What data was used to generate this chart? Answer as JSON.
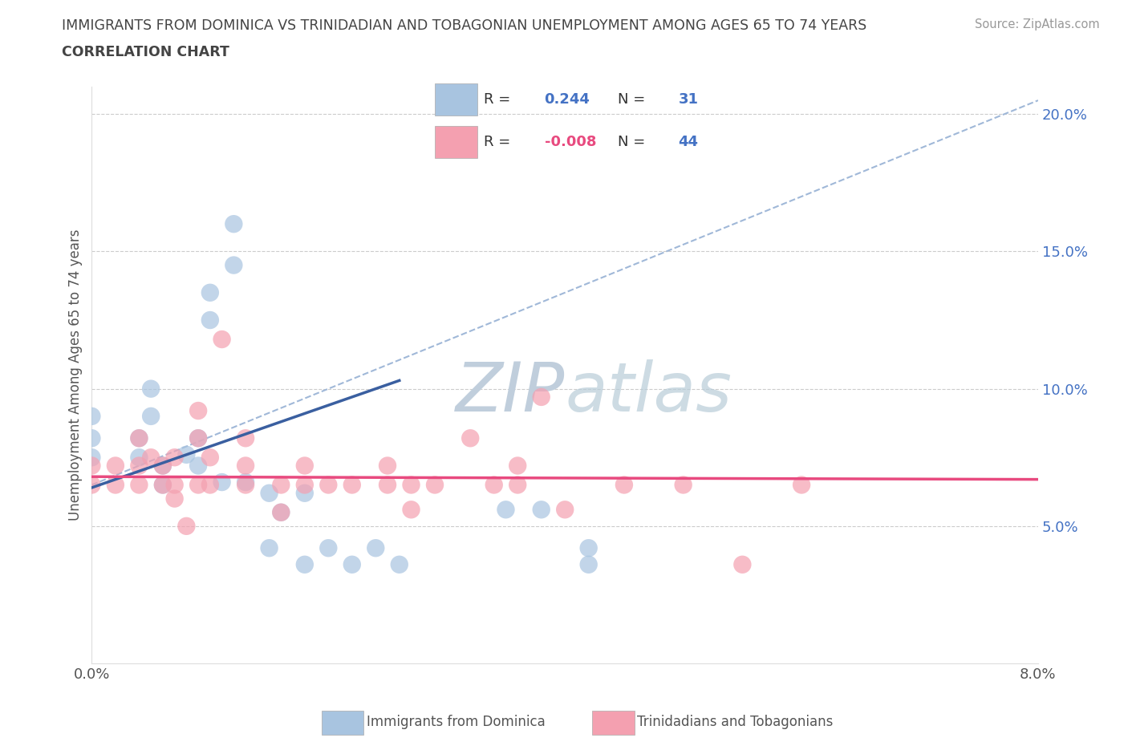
{
  "title": "IMMIGRANTS FROM DOMINICA VS TRINIDADIAN AND TOBAGONIAN UNEMPLOYMENT AMONG AGES 65 TO 74 YEARS",
  "subtitle": "CORRELATION CHART",
  "source": "Source: ZipAtlas.com",
  "ylabel": "Unemployment Among Ages 65 to 74 years",
  "xlim": [
    0.0,
    0.08
  ],
  "ylim": [
    0.0,
    0.21
  ],
  "R_blue": 0.244,
  "N_blue": 31,
  "R_pink": -0.008,
  "N_pink": 44,
  "blue_color": "#a8c4e0",
  "pink_color": "#f4a0b0",
  "blue_line_color": "#3a5fa0",
  "pink_line_color": "#e84a7f",
  "dash_color": "#a0b8d8",
  "watermark_color": "#ccd8e8",
  "legend_label_blue": "Immigrants from Dominica",
  "legend_label_pink": "Trinidadians and Tobagonians",
  "ytick_color": "#4472c4",
  "blue_scatter": [
    [
      0.0,
      0.075
    ],
    [
      0.0,
      0.082
    ],
    [
      0.0,
      0.09
    ],
    [
      0.004,
      0.075
    ],
    [
      0.004,
      0.082
    ],
    [
      0.005,
      0.09
    ],
    [
      0.005,
      0.1
    ],
    [
      0.006,
      0.065
    ],
    [
      0.006,
      0.072
    ],
    [
      0.008,
      0.076
    ],
    [
      0.009,
      0.072
    ],
    [
      0.009,
      0.082
    ],
    [
      0.01,
      0.125
    ],
    [
      0.01,
      0.135
    ],
    [
      0.011,
      0.066
    ],
    [
      0.012,
      0.145
    ],
    [
      0.012,
      0.16
    ],
    [
      0.013,
      0.066
    ],
    [
      0.015,
      0.042
    ],
    [
      0.015,
      0.062
    ],
    [
      0.016,
      0.055
    ],
    [
      0.018,
      0.036
    ],
    [
      0.018,
      0.062
    ],
    [
      0.02,
      0.042
    ],
    [
      0.022,
      0.036
    ],
    [
      0.024,
      0.042
    ],
    [
      0.026,
      0.036
    ],
    [
      0.035,
      0.056
    ],
    [
      0.038,
      0.056
    ],
    [
      0.042,
      0.042
    ],
    [
      0.042,
      0.036
    ]
  ],
  "pink_scatter": [
    [
      0.0,
      0.065
    ],
    [
      0.0,
      0.072
    ],
    [
      0.002,
      0.065
    ],
    [
      0.002,
      0.072
    ],
    [
      0.004,
      0.065
    ],
    [
      0.004,
      0.072
    ],
    [
      0.004,
      0.082
    ],
    [
      0.005,
      0.075
    ],
    [
      0.006,
      0.065
    ],
    [
      0.006,
      0.072
    ],
    [
      0.007,
      0.06
    ],
    [
      0.007,
      0.065
    ],
    [
      0.007,
      0.075
    ],
    [
      0.008,
      0.05
    ],
    [
      0.009,
      0.065
    ],
    [
      0.009,
      0.082
    ],
    [
      0.009,
      0.092
    ],
    [
      0.01,
      0.075
    ],
    [
      0.01,
      0.065
    ],
    [
      0.011,
      0.118
    ],
    [
      0.013,
      0.065
    ],
    [
      0.013,
      0.072
    ],
    [
      0.013,
      0.082
    ],
    [
      0.016,
      0.055
    ],
    [
      0.016,
      0.065
    ],
    [
      0.018,
      0.065
    ],
    [
      0.018,
      0.072
    ],
    [
      0.02,
      0.065
    ],
    [
      0.022,
      0.065
    ],
    [
      0.025,
      0.065
    ],
    [
      0.025,
      0.072
    ],
    [
      0.027,
      0.056
    ],
    [
      0.027,
      0.065
    ],
    [
      0.029,
      0.065
    ],
    [
      0.032,
      0.082
    ],
    [
      0.034,
      0.065
    ],
    [
      0.036,
      0.072
    ],
    [
      0.036,
      0.065
    ],
    [
      0.038,
      0.097
    ],
    [
      0.04,
      0.056
    ],
    [
      0.045,
      0.065
    ],
    [
      0.05,
      0.065
    ],
    [
      0.055,
      0.036
    ],
    [
      0.06,
      0.065
    ]
  ],
  "blue_line_x": [
    0.0,
    0.026
  ],
  "blue_line_y": [
    0.064,
    0.103
  ],
  "pink_line_x": [
    0.0,
    0.08
  ],
  "pink_line_y": [
    0.068,
    0.067
  ],
  "dash_line_x": [
    0.0,
    0.08
  ],
  "dash_line_y": [
    0.065,
    0.205
  ]
}
